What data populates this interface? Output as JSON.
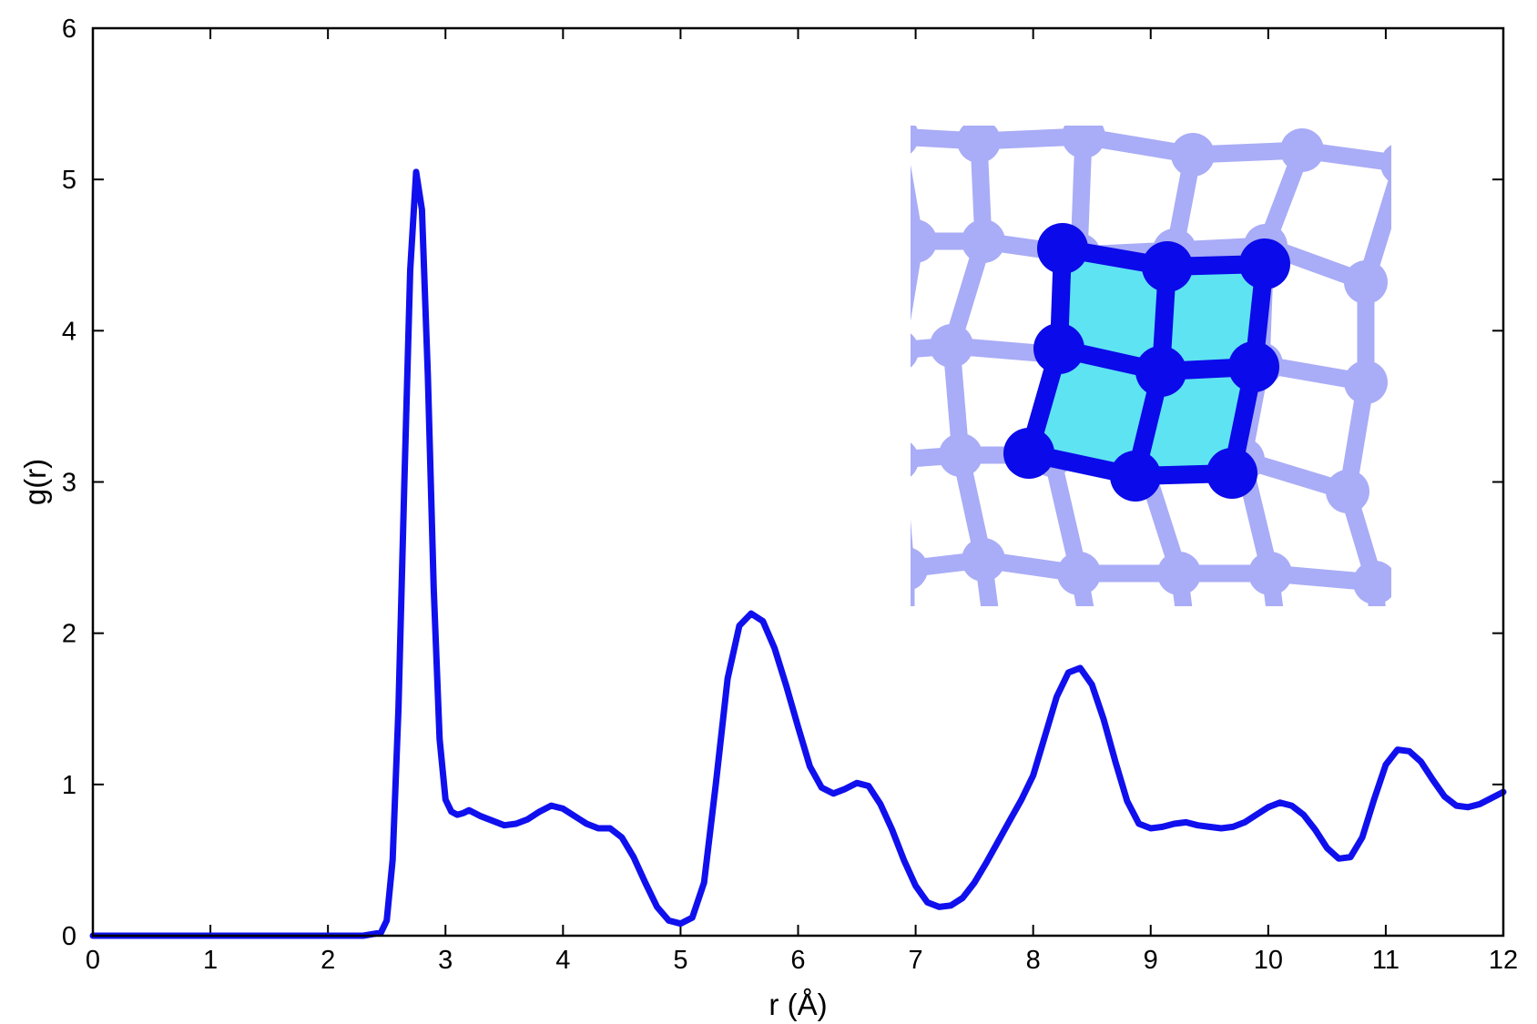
{
  "colors": {
    "line": "#1010ee",
    "axis": "#000000",
    "inset_faint_lattice": "#a9acf6",
    "inset_bold_lattice": "#0a0aea",
    "inset_fill": "#5ee3f2"
  },
  "chart_data": {
    "type": "line",
    "title": "",
    "xlabel": "r (Å)",
    "ylabel": "g(r)",
    "xlim": [
      0,
      12
    ],
    "ylim": [
      0,
      6
    ],
    "xticks": [
      "0",
      "1",
      "2",
      "3",
      "4",
      "5",
      "6",
      "7",
      "8",
      "9",
      "10",
      "11",
      "12"
    ],
    "yticks": [
      "0",
      "1",
      "2",
      "3",
      "4",
      "5",
      "6"
    ],
    "grid": false,
    "legend": "none",
    "series": [
      {
        "x": [
          0,
          0.5,
          1,
          1.5,
          2,
          2.3,
          2.45,
          2.5,
          2.55,
          2.6,
          2.65,
          2.7,
          2.75,
          2.8,
          2.85,
          2.9,
          2.95,
          3.0,
          3.05,
          3.1,
          3.15,
          3.2,
          3.3,
          3.4,
          3.5,
          3.6,
          3.7,
          3.8,
          3.9,
          4.0,
          4.1,
          4.2,
          4.3,
          4.4,
          4.5,
          4.6,
          4.7,
          4.8,
          4.9,
          5.0,
          5.1,
          5.2,
          5.3,
          5.4,
          5.5,
          5.6,
          5.7,
          5.8,
          5.9,
          6.0,
          6.1,
          6.2,
          6.3,
          6.4,
          6.5,
          6.6,
          6.7,
          6.8,
          6.9,
          7.0,
          7.1,
          7.2,
          7.3,
          7.4,
          7.5,
          7.6,
          7.7,
          7.8,
          7.9,
          8.0,
          8.1,
          8.2,
          8.3,
          8.4,
          8.5,
          8.6,
          8.7,
          8.8,
          8.9,
          9.0,
          9.1,
          9.2,
          9.3,
          9.4,
          9.5,
          9.6,
          9.7,
          9.8,
          9.9,
          10.0,
          10.1,
          10.2,
          10.3,
          10.4,
          10.5,
          10.6,
          10.7,
          10.8,
          10.9,
          11.0,
          11.1,
          11.2,
          11.3,
          11.4,
          11.5,
          11.6,
          11.7,
          11.8,
          11.9,
          12.0
        ],
        "y": [
          0,
          0,
          0,
          0,
          0,
          0,
          0.02,
          0.1,
          0.5,
          1.5,
          3.0,
          4.4,
          5.05,
          4.8,
          3.7,
          2.3,
          1.3,
          0.9,
          0.82,
          0.8,
          0.81,
          0.83,
          0.79,
          0.76,
          0.73,
          0.74,
          0.77,
          0.82,
          0.86,
          0.84,
          0.79,
          0.74,
          0.71,
          0.71,
          0.65,
          0.52,
          0.35,
          0.19,
          0.1,
          0.08,
          0.12,
          0.35,
          1.0,
          1.7,
          2.05,
          2.13,
          2.08,
          1.9,
          1.65,
          1.38,
          1.12,
          0.98,
          0.94,
          0.97,
          1.01,
          0.99,
          0.87,
          0.7,
          0.5,
          0.33,
          0.22,
          0.19,
          0.2,
          0.25,
          0.35,
          0.48,
          0.62,
          0.76,
          0.9,
          1.06,
          1.32,
          1.58,
          1.74,
          1.77,
          1.66,
          1.43,
          1.15,
          0.89,
          0.74,
          0.71,
          0.72,
          0.74,
          0.75,
          0.73,
          0.72,
          0.71,
          0.72,
          0.75,
          0.8,
          0.85,
          0.88,
          0.86,
          0.8,
          0.7,
          0.58,
          0.51,
          0.52,
          0.65,
          0.9,
          1.13,
          1.23,
          1.22,
          1.15,
          1.03,
          0.92,
          0.86,
          0.85,
          0.87,
          0.91,
          0.95
        ]
      }
    ]
  }
}
